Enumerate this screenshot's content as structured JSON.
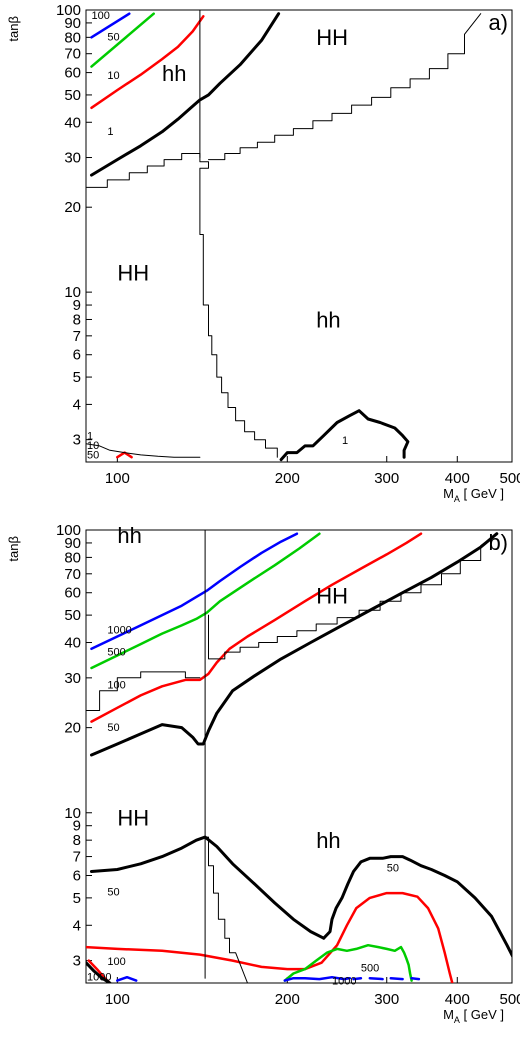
{
  "chart_data": [
    {
      "type": "line",
      "panel_label": "a)",
      "ylabel": "tanβ",
      "xlabel": "M_A [ GeV ]",
      "xscale": "log",
      "yscale": "log",
      "xlim": [
        88,
        500
      ],
      "ylim": [
        2.5,
        100
      ],
      "x_ticks": [
        100,
        200,
        300,
        400,
        500
      ],
      "x_tick_labels": [
        "100",
        "200",
        "300",
        "400",
        "500"
      ],
      "y_ticks": [
        3,
        4,
        5,
        6,
        7,
        8,
        9,
        10,
        20,
        30,
        40,
        50,
        60,
        70,
        80,
        90,
        100
      ],
      "y_tick_labels": [
        "3",
        "4",
        "5",
        "6",
        "7",
        "8",
        "9",
        "10",
        "20",
        "30",
        "40",
        "50",
        "60",
        "70",
        "80",
        "90",
        "100"
      ],
      "region_labels": [
        {
          "text": "hh",
          "x": 120,
          "y": 56
        },
        {
          "text": "HH",
          "x": 225,
          "y": 75
        },
        {
          "text": "HH",
          "x": 100,
          "y": 11
        },
        {
          "text": "hh",
          "x": 225,
          "y": 7.5
        }
      ],
      "contour_labels": [
        {
          "text": "100",
          "x": 90,
          "y": 93
        },
        {
          "text": "50",
          "x": 96,
          "y": 78
        },
        {
          "text": "10",
          "x": 96,
          "y": 57
        },
        {
          "text": "1",
          "x": 96,
          "y": 36
        },
        {
          "text": "1",
          "x": 250,
          "y": 2.9
        },
        {
          "text": "1",
          "x": 87,
          "y": 3.0
        },
        {
          "text": "10",
          "x": 87,
          "y": 2.78
        },
        {
          "text": "50",
          "x": 87,
          "y": 2.57
        }
      ],
      "series": [
        {
          "color": "#0000ff",
          "width": 2.5,
          "x": [
            90,
            105
          ],
          "y": [
            80,
            97
          ]
        },
        {
          "color": "#00cc00",
          "width": 2.5,
          "x": [
            90,
            116
          ],
          "y": [
            63,
            97
          ]
        },
        {
          "color": "#ff0000",
          "width": 2.5,
          "x": [
            90,
            100,
            110,
            120,
            128,
            136,
            142
          ],
          "y": [
            45,
            52,
            59,
            67,
            74,
            84,
            95
          ]
        },
        {
          "color": "#000000",
          "width": 3,
          "x": [
            90,
            100,
            110,
            120,
            128,
            135,
            140,
            145,
            152,
            165,
            180,
            193
          ],
          "y": [
            26,
            29.5,
            33,
            37,
            41,
            45,
            48,
            50,
            55,
            64,
            78,
            97
          ]
        },
        {
          "color": "#000000",
          "width": 3,
          "x": [
            195,
            200,
            208,
            215,
            222,
            232,
            245,
            258,
            268,
            278,
            292,
            310,
            320,
            327,
            322,
            322
          ],
          "y": [
            2.55,
            2.7,
            2.7,
            2.85,
            2.85,
            3.1,
            3.45,
            3.65,
            3.8,
            3.55,
            3.45,
            3.3,
            3.1,
            2.95,
            2.75,
            2.6
          ]
        },
        {
          "color": "#ff0000",
          "width": 2.5,
          "x": [
            100,
            103,
            106
          ],
          "y": [
            2.6,
            2.7,
            2.6
          ]
        },
        {
          "color": "#000000",
          "width": 1,
          "x": [
            88,
            93,
            97,
            103,
            110,
            118,
            126,
            135,
            140
          ],
          "y": [
            2.9,
            2.85,
            2.75,
            2.7,
            2.65,
            2.62,
            2.6,
            2.6,
            2.6
          ]
        },
        {
          "color": "#000000",
          "width": 1,
          "x": [
            140,
            140
          ],
          "y": [
            30,
            100
          ]
        },
        {
          "color": "#000000",
          "width": 1,
          "x": [
            88,
            96,
            96,
            105,
            105,
            113,
            113,
            121,
            121,
            130,
            130,
            140,
            140,
            145,
            145,
            140,
            140,
            142,
            142,
            145,
            145,
            147,
            147,
            150,
            150,
            153,
            153,
            157,
            157,
            162,
            162,
            168,
            168,
            175,
            175,
            183,
            183,
            192,
            192
          ],
          "y": [
            23.5,
            23.5,
            25,
            25,
            26.5,
            26.5,
            28,
            28,
            29.5,
            29.5,
            31,
            31,
            29,
            29,
            27.5,
            27.5,
            16,
            16,
            9,
            9,
            7,
            7,
            6,
            6,
            5,
            5,
            4.4,
            4.4,
            3.9,
            3.9,
            3.5,
            3.5,
            3.2,
            3.2,
            3.0,
            3.0,
            2.8,
            2.8,
            2.6
          ]
        },
        {
          "color": "#000000",
          "width": 1,
          "x": [
            145,
            155,
            155,
            165,
            165,
            177,
            177,
            190,
            190,
            205,
            205,
            222,
            222,
            240,
            240,
            260,
            260,
            282,
            282,
            305,
            305,
            330,
            330,
            357,
            357,
            385,
            385,
            412,
            412,
            440
          ],
          "y": [
            29.5,
            29.5,
            31,
            31,
            32.5,
            32.5,
            34,
            34,
            36,
            36,
            38,
            38,
            40.5,
            40.5,
            43,
            43,
            46,
            46,
            49,
            49,
            53,
            53,
            57,
            57,
            62,
            62,
            70,
            70,
            82,
            97
          ]
        }
      ]
    },
    {
      "type": "line",
      "panel_label": "b)",
      "ylabel": "tanβ",
      "xlabel": "M_A [ GeV ]",
      "xscale": "log",
      "yscale": "log",
      "xlim": [
        88,
        500
      ],
      "ylim": [
        2.5,
        100
      ],
      "x_ticks": [
        100,
        200,
        300,
        400,
        500
      ],
      "x_tick_labels": [
        "100",
        "200",
        "300",
        "400",
        "500"
      ],
      "y_ticks": [
        3,
        4,
        5,
        6,
        7,
        8,
        9,
        10,
        20,
        30,
        40,
        50,
        60,
        70,
        80,
        90,
        100
      ],
      "y_tick_labels": [
        "3",
        "4",
        "5",
        "6",
        "7",
        "8",
        "9",
        "10",
        "20",
        "30",
        "40",
        "50",
        "60",
        "70",
        "80",
        "90",
        "100"
      ],
      "region_labels": [
        {
          "text": "hh",
          "x": 100,
          "y": 90
        },
        {
          "text": "HH",
          "x": 225,
          "y": 55
        },
        {
          "text": "HH",
          "x": 100,
          "y": 9
        },
        {
          "text": "hh",
          "x": 225,
          "y": 7.5
        }
      ],
      "contour_labels": [
        {
          "text": "1000",
          "x": 96,
          "y": 43
        },
        {
          "text": "500",
          "x": 96,
          "y": 36
        },
        {
          "text": "100",
          "x": 96,
          "y": 27.5
        },
        {
          "text": "50",
          "x": 96,
          "y": 19.5
        },
        {
          "text": "50",
          "x": 96,
          "y": 5.1
        },
        {
          "text": "100",
          "x": 96,
          "y": 2.9
        },
        {
          "text": "50",
          "x": 300,
          "y": 6.2
        },
        {
          "text": "500",
          "x": 270,
          "y": 2.75
        },
        {
          "text": "1000",
          "x": 240,
          "y": 2.47
        },
        {
          "text": "1000",
          "x": 88,
          "y": 2.55
        }
      ],
      "series": [
        {
          "color": "#0000ff",
          "width": 2.5,
          "x": [
            90,
            100,
            110,
            120,
            130,
            138,
            144,
            152,
            165,
            180,
            195,
            208
          ],
          "y": [
            38,
            42,
            46,
            50,
            54,
            58,
            61,
            66,
            74,
            83,
            91,
            97
          ]
        },
        {
          "color": "#00cc00",
          "width": 2.5,
          "x": [
            90,
            100,
            110,
            120,
            130,
            138,
            144,
            152,
            170,
            190,
            210,
            228
          ],
          "y": [
            32.5,
            36,
            39.5,
            43,
            46,
            48.5,
            51,
            56,
            65,
            75,
            86,
            97
          ]
        },
        {
          "color": "#ff0000",
          "width": 2.5,
          "x": [
            90,
            100,
            110,
            120,
            132,
            140,
            145,
            150,
            158,
            170,
            190,
            215,
            240,
            270,
            300,
            325,
            345
          ],
          "y": [
            21,
            23.5,
            26,
            28,
            29.5,
            29.5,
            31,
            34,
            38,
            42,
            48,
            56,
            64,
            73,
            82,
            90,
            97
          ]
        },
        {
          "color": "#000000",
          "width": 3,
          "x": [
            90,
            100,
            110,
            120,
            130,
            136,
            139,
            142,
            145,
            150,
            160,
            175,
            195,
            220,
            250,
            285,
            320,
            360,
            400,
            440,
            470
          ],
          "y": [
            16,
            17.5,
            19,
            20.5,
            20,
            18.5,
            17.5,
            17.5,
            19.5,
            22.5,
            27,
            30.5,
            35,
            40,
            46,
            53,
            60,
            68,
            77,
            87,
            97
          ]
        },
        {
          "color": "#000000",
          "width": 3,
          "x": [
            90,
            100,
            110,
            120,
            130,
            138,
            143,
            150,
            160,
            175,
            190,
            205,
            220,
            232
          ],
          "y": [
            6.2,
            6.3,
            6.6,
            7.0,
            7.5,
            8.0,
            8.2,
            7.6,
            6.6,
            5.6,
            4.8,
            4.2,
            3.8,
            3.6
          ]
        },
        {
          "color": "#000000",
          "width": 3,
          "x": [
            232,
            238,
            240,
            244,
            250,
            256,
            262,
            270,
            280,
            295,
            305,
            320,
            330,
            345,
            360,
            380,
            400,
            430,
            460,
            490,
            510
          ],
          "y": [
            3.6,
            3.8,
            4.2,
            4.6,
            5.0,
            5.6,
            6.2,
            6.7,
            6.9,
            6.9,
            7.0,
            7.0,
            6.8,
            6.5,
            6.3,
            6.0,
            5.7,
            5.0,
            4.3,
            3.4,
            2.9
          ]
        },
        {
          "color": "#ff0000",
          "width": 2.5,
          "x": [
            88,
            100,
            120,
            140,
            160,
            180,
            200,
            215,
            230,
            245,
            255,
            265,
            280,
            300,
            320,
            340,
            355,
            370,
            380,
            388,
            392
          ],
          "y": [
            3.35,
            3.3,
            3.25,
            3.15,
            3.0,
            2.85,
            2.8,
            2.8,
            2.95,
            3.4,
            4.0,
            4.6,
            5.0,
            5.2,
            5.2,
            5.05,
            4.6,
            3.9,
            3.2,
            2.7,
            2.5
          ]
        },
        {
          "color": "#00cc00",
          "width": 2.5,
          "x": [
            198,
            205,
            215,
            225,
            235,
            245,
            255,
            265,
            278,
            290,
            300,
            310,
            318,
            322,
            325,
            328,
            330,
            332
          ],
          "y": [
            2.55,
            2.7,
            2.8,
            3.0,
            3.2,
            3.3,
            3.25,
            3.3,
            3.4,
            3.35,
            3.3,
            3.25,
            3.35,
            3.2,
            3.05,
            2.9,
            2.7,
            2.55
          ]
        },
        {
          "color": "#0000ff",
          "width": 2.5,
          "x": [
            198,
            205,
            215,
            228,
            240,
            252,
            258
          ],
          "y": [
            2.55,
            2.6,
            2.6,
            2.58,
            2.62,
            2.58,
            2.6
          ]
        },
        {
          "color": "#0000ff",
          "width": 2.5,
          "x": [
            262,
            270
          ],
          "y": [
            2.58,
            2.6
          ]
        },
        {
          "color": "#0000ff",
          "width": 2.5,
          "x": [
            280,
            295
          ],
          "y": [
            2.6,
            2.58
          ]
        },
        {
          "color": "#0000ff",
          "width": 2.5,
          "x": [
            305,
            320
          ],
          "y": [
            2.6,
            2.58
          ]
        },
        {
          "color": "#0000ff",
          "width": 2.5,
          "x": [
            332,
            342
          ],
          "y": [
            2.6,
            2.58
          ]
        },
        {
          "color": "#ff0000",
          "width": 2.5,
          "x": [
            89,
            92,
            95,
            97
          ],
          "y": [
            3.0,
            2.8,
            2.6,
            2.5
          ]
        },
        {
          "color": "#000000",
          "width": 3,
          "x": [
            88,
            91,
            94,
            97
          ],
          "y": [
            2.95,
            2.75,
            2.6,
            2.5
          ]
        },
        {
          "color": "#0000ff",
          "width": 2.5,
          "x": [
            100,
            104,
            108
          ],
          "y": [
            2.55,
            2.62,
            2.55
          ]
        },
        {
          "color": "#000000",
          "width": 1,
          "x": [
            143,
            143
          ],
          "y": [
            2.6,
            100
          ]
        },
        {
          "color": "#000000",
          "width": 1,
          "x": [
            143,
            145,
            145,
            148,
            148,
            151,
            151,
            155,
            155,
            158,
            158,
            162,
            170
          ],
          "y": [
            8.2,
            8.2,
            6.5,
            6.5,
            5.2,
            5.2,
            4.2,
            4.2,
            3.6,
            3.6,
            3.2,
            3.2,
            2.5
          ]
        },
        {
          "color": "#000000",
          "width": 1,
          "x": [
            88,
            93,
            93,
            100,
            100,
            110,
            110,
            120,
            120,
            132,
            132,
            140
          ],
          "y": [
            23,
            23,
            27,
            27,
            30,
            30,
            31.5,
            31.5,
            31.5,
            31.5,
            30,
            30
          ]
        },
        {
          "color": "#000000",
          "width": 1,
          "x": [
            145,
            145,
            155,
            155,
            165,
            165,
            178,
            178,
            192,
            192,
            208,
            208,
            225,
            225,
            245,
            245,
            268,
            268,
            292,
            292,
            318,
            318,
            345,
            345,
            375,
            375,
            405,
            405,
            440,
            440,
            470
          ],
          "y": [
            50,
            35,
            35,
            37,
            37,
            38.5,
            38.5,
            40,
            40,
            42,
            42,
            44,
            44,
            46.5,
            46.5,
            49,
            49,
            52,
            52,
            56,
            56,
            60,
            60,
            64,
            64,
            70,
            70,
            78,
            78,
            88,
            97
          ]
        }
      ]
    }
  ]
}
